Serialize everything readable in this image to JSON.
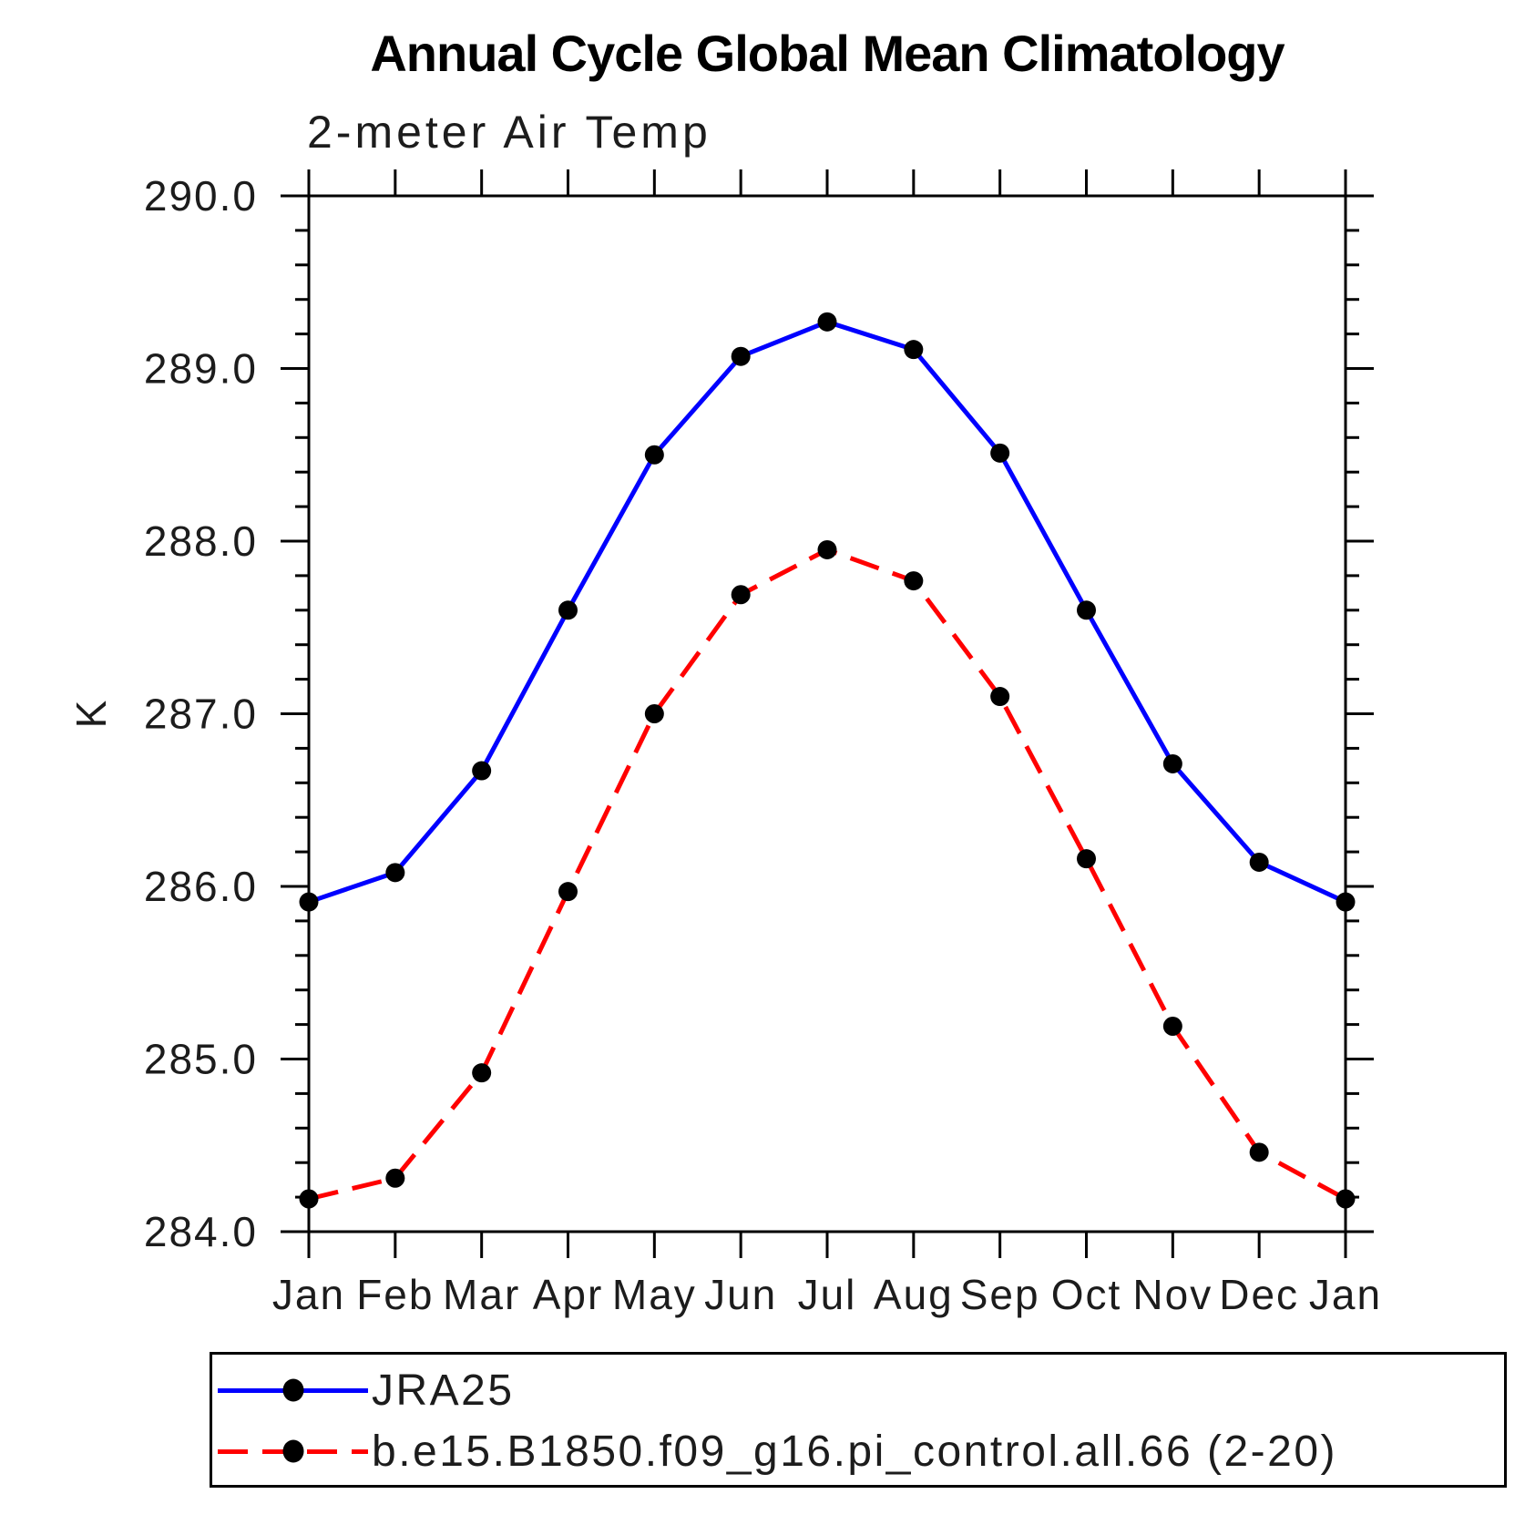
{
  "page": {
    "background": "#ffffff"
  },
  "chart_data": {
    "type": "line",
    "title": "Annual Cycle Global Mean Climatology",
    "subtitle": "2-meter Air Temp",
    "ylabel": "K",
    "xlabel": "",
    "x_categories": [
      "Jan",
      "Feb",
      "Mar",
      "Apr",
      "May",
      "Jun",
      "Jul",
      "Aug",
      "Sep",
      "Oct",
      "Nov",
      "Dec",
      "Jan"
    ],
    "ylim": [
      284.0,
      290.0
    ],
    "y_major_tick_step": 1.0,
    "y_minor_tick_step": 0.2,
    "y_tick_labels": [
      "290.0",
      "289.0",
      "288.0",
      "287.0",
      "286.0",
      "285.0",
      "284.0"
    ],
    "grid": false,
    "legend_position": "bottom",
    "axis_color": "#000000",
    "marker_color": "#000000",
    "series": [
      {
        "name": "JRA25",
        "color": "#0000ff",
        "line_style": "solid",
        "marker": "filled-circle",
        "values": [
          285.91,
          286.08,
          286.67,
          287.6,
          288.5,
          289.07,
          289.27,
          289.11,
          288.51,
          287.6,
          286.71,
          286.14,
          285.91
        ]
      },
      {
        "name": "b.e15.B1850.f09_g16.pi_control.all.66 (2-20)",
        "color": "#ff0000",
        "line_style": "dashed",
        "marker": "filled-circle",
        "values": [
          284.19,
          284.31,
          284.92,
          285.97,
          287.0,
          287.69,
          287.95,
          287.77,
          287.1,
          286.16,
          285.19,
          284.46,
          284.19
        ]
      }
    ]
  }
}
